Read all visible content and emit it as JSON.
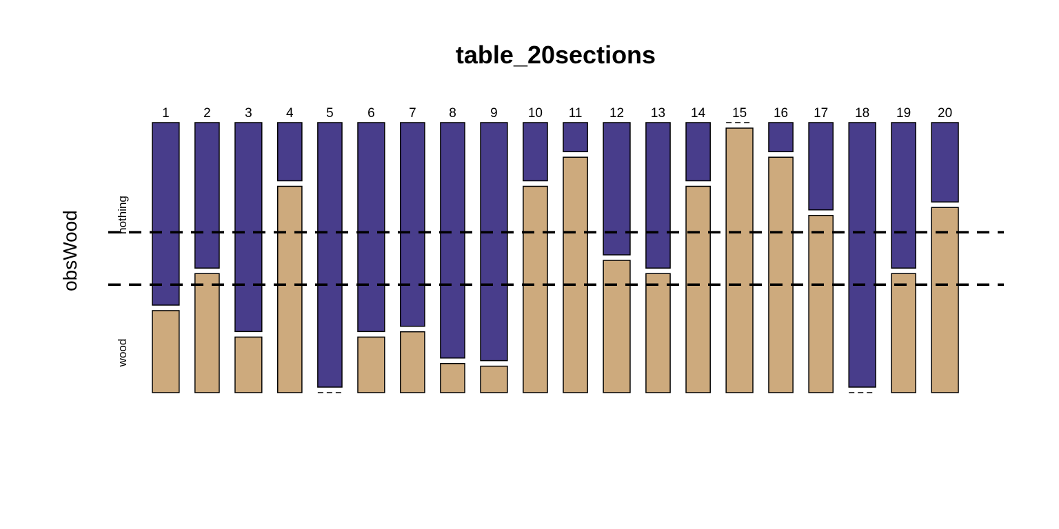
{
  "chart_data": {
    "type": "mosaic",
    "title": "table_20sections",
    "ylabel": "obsWood",
    "categories": [
      "1",
      "2",
      "3",
      "4",
      "5",
      "6",
      "7",
      "8",
      "9",
      "10",
      "11",
      "12",
      "13",
      "14",
      "15",
      "16",
      "17",
      "18",
      "19",
      "20"
    ],
    "row_levels": [
      "nothing",
      "wood"
    ],
    "series": [
      {
        "name": "nothing",
        "values": [
          0.69,
          0.55,
          0.79,
          0.22,
          1.0,
          0.79,
          0.77,
          0.89,
          0.9,
          0.22,
          0.11,
          0.5,
          0.55,
          0.22,
          0.0,
          0.11,
          0.33,
          1.0,
          0.55,
          0.3
        ]
      },
      {
        "name": "wood",
        "values": [
          0.31,
          0.45,
          0.21,
          0.78,
          0.0,
          0.21,
          0.23,
          0.11,
          0.1,
          0.78,
          0.89,
          0.5,
          0.45,
          0.78,
          1.0,
          0.89,
          0.67,
          0.0,
          0.45,
          0.7
        ]
      }
    ],
    "column_widths": [
      1.05,
      0.95,
      1.05,
      0.95,
      0.95,
      1.05,
      0.95,
      0.95,
      1.05,
      0.95,
      0.95,
      1.05,
      0.95,
      0.95,
      1.05,
      0.95,
      0.95,
      1.05,
      0.95,
      1.05
    ],
    "reference_lines": {
      "style": "dashed",
      "positions": [
        0.406,
        0.6
      ]
    },
    "colors": {
      "nothing": "#483d8b",
      "wood": "#cdaa7d"
    },
    "grid": false,
    "legend": "none"
  }
}
